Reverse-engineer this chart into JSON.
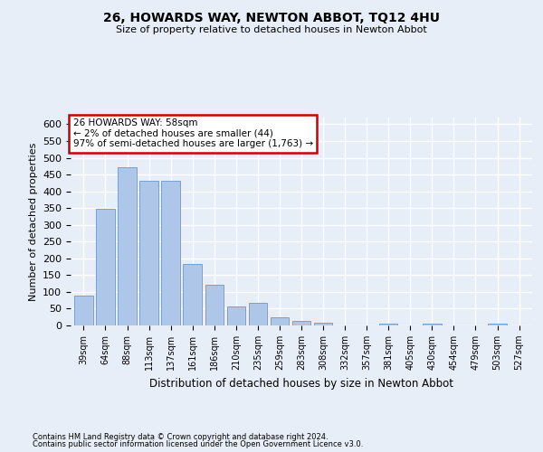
{
  "title": "26, HOWARDS WAY, NEWTON ABBOT, TQ12 4HU",
  "subtitle": "Size of property relative to detached houses in Newton Abbot",
  "xlabel": "Distribution of detached houses by size in Newton Abbot",
  "ylabel": "Number of detached properties",
  "footer1": "Contains HM Land Registry data © Crown copyright and database right 2024.",
  "footer2": "Contains public sector information licensed under the Open Government Licence v3.0.",
  "annotation_line1": "26 HOWARDS WAY: 58sqm",
  "annotation_line2": "← 2% of detached houses are smaller (44)",
  "annotation_line3": "97% of semi-detached houses are larger (1,763) →",
  "bar_color": "#aec6e8",
  "bar_edge_color": "#6699cc",
  "annotation_box_color": "#ffffff",
  "annotation_box_edge": "#cc0000",
  "bg_color": "#e8eef8",
  "grid_color": "#ffffff",
  "categories": [
    "39sqm",
    "64sqm",
    "88sqm",
    "113sqm",
    "137sqm",
    "161sqm",
    "186sqm",
    "210sqm",
    "235sqm",
    "259sqm",
    "283sqm",
    "308sqm",
    "332sqm",
    "357sqm",
    "381sqm",
    "405sqm",
    "430sqm",
    "454sqm",
    "479sqm",
    "503sqm",
    "527sqm"
  ],
  "values": [
    88,
    349,
    472,
    430,
    430,
    184,
    122,
    56,
    67,
    25,
    13,
    9,
    0,
    0,
    5,
    0,
    5,
    0,
    0,
    5,
    0
  ],
  "ylim": [
    0,
    620
  ],
  "yticks": [
    0,
    50,
    100,
    150,
    200,
    250,
    300,
    350,
    400,
    450,
    500,
    550,
    600
  ],
  "figsize": [
    6.0,
    5.0
  ],
  "dpi": 100
}
